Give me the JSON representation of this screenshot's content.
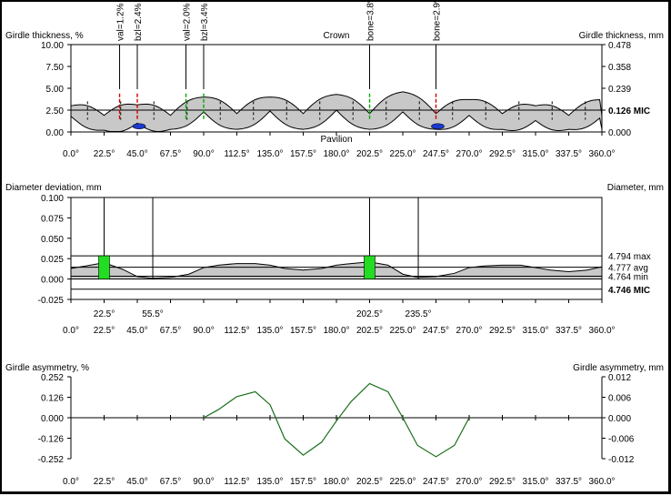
{
  "girdle_thickness": {
    "left_axis_label": "Girdle thickness, %",
    "right_axis_label": "Girdle thickness, mm",
    "top_label": "Crown",
    "bottom_label": "Pavilion",
    "left_ticks": [
      "10.00",
      "7.50",
      "5.00",
      "2.50",
      "0.00"
    ],
    "right_ticks": [
      "0.478",
      "0.358",
      "0.239",
      "0.126 MIC",
      "0.000"
    ],
    "x_ticks": [
      "0.0°",
      "22.5°",
      "45.0°",
      "67.5°",
      "90.0°",
      "112.5°",
      "135.0°",
      "157.5°",
      "180.0°",
      "202.5°",
      "225.0°",
      "247.5°",
      "270.0°",
      "292.5°",
      "315.0°",
      "337.5°",
      "360.0°"
    ],
    "annotations": [
      {
        "text": "val=1.2%",
        "angle": 33
      },
      {
        "text": "bzl=2.4%",
        "angle": 45
      },
      {
        "text": "val=2.0%",
        "angle": 78
      },
      {
        "text": "bzl=3.4%",
        "angle": 90
      },
      {
        "text": "bone=3.8%",
        "angle": 202.5
      },
      {
        "text": "bone=2.9%",
        "angle": 247.5
      }
    ]
  },
  "diameter_deviation": {
    "left_axis_label": "Diameter deviation, mm",
    "right_axis_label": "Diameter, mm",
    "left_ticks": [
      "0.100",
      "0.075",
      "0.050",
      "0.025",
      "0.000",
      "-0.025"
    ],
    "right_ticks": [
      "4.794 max",
      "4.777 avg",
      "4.764 min",
      "4.746 MIC"
    ],
    "x_ticks": [
      "0.0°",
      "22.5°",
      "45.0°",
      "67.5°",
      "90.0°",
      "112.5°",
      "135.0°",
      "157.5°",
      "180.0°",
      "202.5°",
      "225.0°",
      "247.5°",
      "270.0°",
      "292.5°",
      "315.0°",
      "337.5°",
      "360.0°"
    ],
    "markers": [
      {
        "text": "22.5°",
        "color": "#22cc22"
      },
      {
        "text": "55.5°",
        "color": "#ee1111"
      },
      {
        "text": "202.5°",
        "color": "#22cc22"
      },
      {
        "text": "235.5°",
        "color": "#ee1111"
      }
    ]
  },
  "girdle_asymmetry": {
    "left_axis_label": "Girdle asymmetry, %",
    "right_axis_label": "Girdle asymmetry, mm",
    "left_ticks": [
      "0.252",
      "0.126",
      "0.000",
      "-0.126",
      "-0.252"
    ],
    "right_ticks": [
      "0.012",
      "0.006",
      "0.000",
      "-0.006",
      "-0.012"
    ],
    "x_ticks": [
      "0.0°",
      "22.5°",
      "45.0°",
      "67.5°",
      "90.0°",
      "112.5°",
      "135.0°",
      "157.5°",
      "180.0°",
      "202.5°",
      "225.0°",
      "247.5°",
      "270.0°",
      "292.5°",
      "315.0°",
      "337.5°",
      "360.0°"
    ]
  },
  "chart_data": [
    {
      "type": "area",
      "xlim": [
        0,
        360
      ],
      "ylim": [
        0,
        10
      ],
      "crown_line_level": 2.5,
      "x": [
        0,
        22.5,
        45,
        67.5,
        90,
        112.5,
        135,
        157.5,
        180,
        202.5,
        225,
        247.5,
        270,
        292.5,
        315,
        337.5,
        360
      ],
      "crown_edge": [
        1.6,
        0.5,
        1.7,
        0.5,
        2.6,
        0.7,
        2.6,
        0.7,
        2.9,
        0.7,
        3.2,
        0.7,
        2.3,
        0.7,
        1.6,
        0.5,
        2.3
      ],
      "pavilion_edge": [
        1.8,
        0.2,
        1.0,
        0.3,
        2.3,
        0.3,
        2.4,
        0.3,
        2.5,
        0.3,
        2.3,
        0.3,
        1.9,
        0.3,
        1.3,
        0.3,
        1.8
      ]
    },
    {
      "type": "area",
      "xlim": [
        0,
        360
      ],
      "ylim": [
        -0.025,
        0.1
      ],
      "x": [
        0,
        10,
        22.5,
        35,
        45,
        55,
        67.5,
        80,
        90,
        100,
        112.5,
        125,
        135,
        145,
        157.5,
        170,
        180,
        190,
        202.5,
        215,
        225,
        235,
        247.5,
        260,
        270,
        280,
        292.5,
        305,
        315,
        325,
        337.5,
        350,
        360
      ],
      "values": [
        0.013,
        0.016,
        0.02,
        0.012,
        0.003,
        0.001,
        0.002,
        0.006,
        0.014,
        0.017,
        0.019,
        0.019,
        0.017,
        0.013,
        0.011,
        0.013,
        0.017,
        0.019,
        0.021,
        0.017,
        0.006,
        0.002,
        0.003,
        0.007,
        0.014,
        0.016,
        0.017,
        0.017,
        0.014,
        0.011,
        0.009,
        0.011,
        0.015
      ]
    },
    {
      "type": "line",
      "xlim": [
        0,
        360
      ],
      "ylim": [
        -0.252,
        0.252
      ],
      "x": [
        90,
        100,
        112.5,
        125,
        135,
        145,
        157.5,
        170,
        180,
        190,
        202.5,
        215,
        225,
        235,
        247.5,
        260,
        270
      ],
      "values": [
        0.0,
        0.05,
        0.13,
        0.16,
        0.08,
        -0.13,
        -0.23,
        -0.15,
        -0.02,
        0.1,
        0.21,
        0.16,
        0.0,
        -0.17,
        -0.24,
        -0.17,
        0.0
      ]
    }
  ]
}
